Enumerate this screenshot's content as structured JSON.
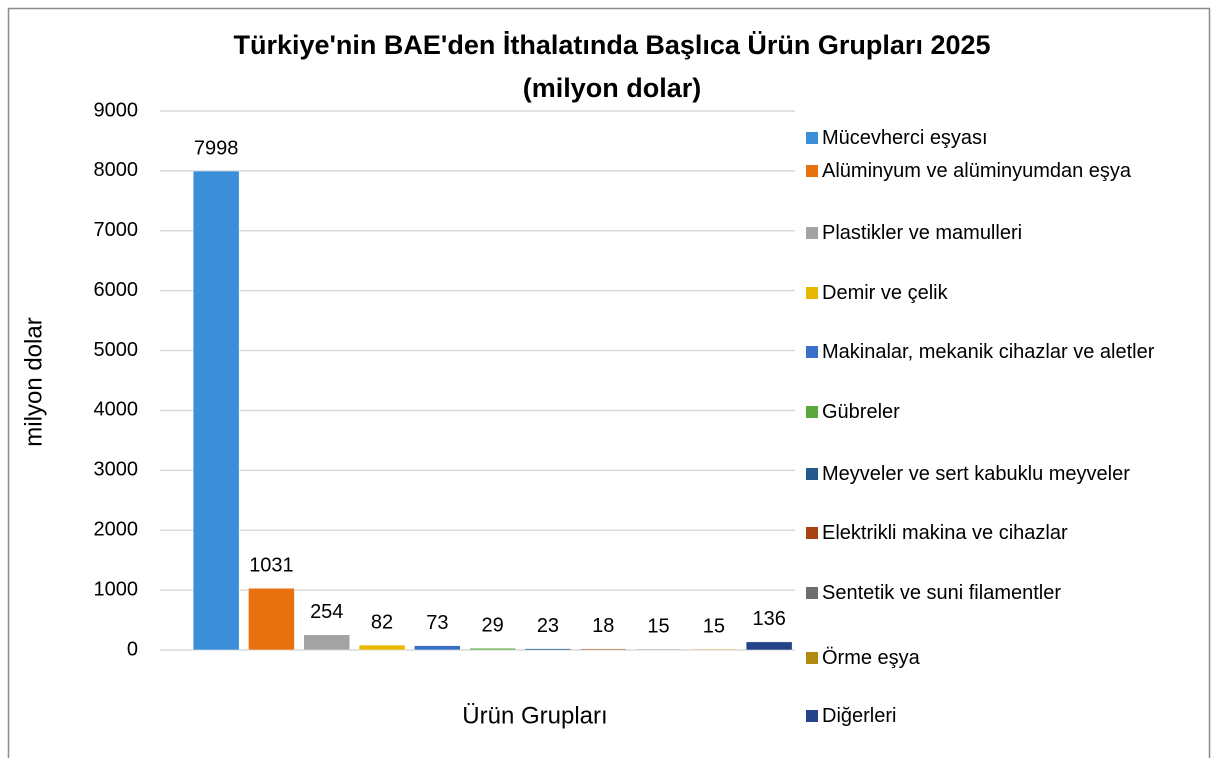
{
  "chart_data": {
    "type": "bar",
    "title": "Türkiye'nin BAE'den İthalatında Başlıca Ürün Grupları 2025",
    "subtitle": "(milyon dolar)",
    "y_label": "milyon dolar",
    "x_label": "Ürün Grupları",
    "ylim": [
      0,
      9000
    ],
    "yticks": [
      0,
      1000,
      2000,
      3000,
      4000,
      5000,
      6000,
      7000,
      8000,
      9000
    ],
    "grid": true,
    "legend": "right",
    "series": [
      {
        "name": "Mücevherci eşyası",
        "color": "#3b8fd9",
        "values": [
          7998
        ]
      },
      {
        "name": "Alüminyum ve alüminyumdan eşya",
        "color": "#e8700e",
        "values": [
          1031
        ]
      },
      {
        "name": "Plastikler ve mamulleri",
        "color": "#a3a3a3",
        "values": [
          254
        ]
      },
      {
        "name": "Demir ve çelik",
        "color": "#e8b800",
        "values": [
          82
        ]
      },
      {
        "name": "Makinalar, mekanik cihazlar ve aletler",
        "color": "#3a6fc9",
        "values": [
          73
        ]
      },
      {
        "name": "Gübreler",
        "color": "#5aa83c",
        "values": [
          29
        ]
      },
      {
        "name": "Meyveler ve sert kabuklu meyveler",
        "color": "#235a8c",
        "values": [
          23
        ]
      },
      {
        "name": "Elektrikli makina ve cihazlar",
        "color": "#a8420f",
        "values": [
          18
        ]
      },
      {
        "name": "Sentetik ve suni filamentler",
        "color": "#6e6e6e",
        "values": [
          15
        ]
      },
      {
        "name": "Örme eşya",
        "color": "#b08a10",
        "values": [
          15
        ]
      },
      {
        "name": "Diğerleri",
        "color": "#24448a",
        "values": [
          136
        ]
      }
    ]
  }
}
